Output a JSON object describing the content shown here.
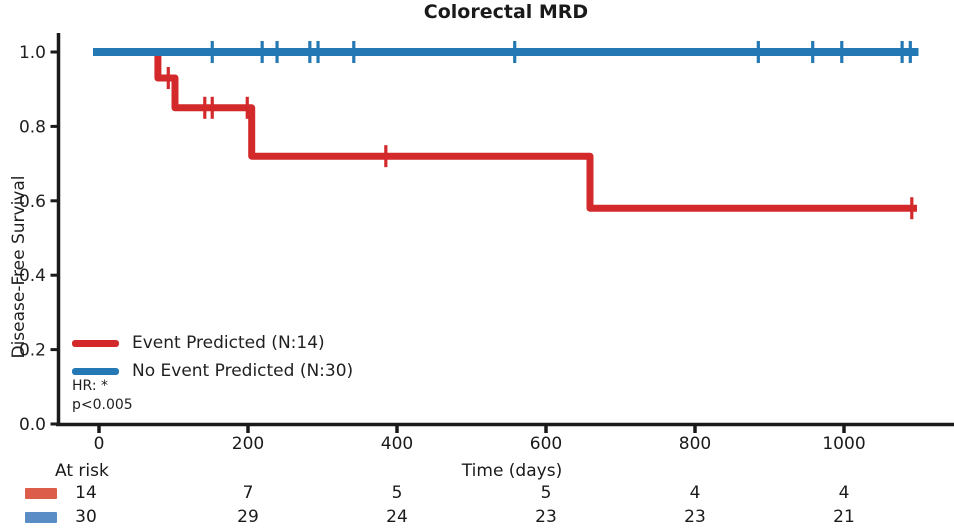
{
  "chart_data": {
    "type": "line",
    "subtype": "kaplan-meier-step",
    "title": "Colorectal MRD",
    "xlabel": "Time (days)",
    "ylabel": "Disease-Free Survival",
    "xlim": [
      0,
      1148
    ],
    "ylim": [
      0.0,
      1.0
    ],
    "x_ticks": [
      0,
      200,
      400,
      600,
      800,
      1000
    ],
    "y_ticks": [
      0.0,
      0.2,
      0.4,
      0.6,
      0.8,
      1.0
    ],
    "grid": false,
    "legend_position": "lower-left",
    "series": [
      {
        "name": "Event Predicted (N:14)",
        "n": 14,
        "color": "#d3292b",
        "steps": [
          [
            0,
            1.0
          ],
          [
            79,
            0.93
          ],
          [
            102,
            0.85
          ],
          [
            205,
            0.72
          ],
          [
            659,
            0.58
          ]
        ],
        "end_time": 1098,
        "censor_times": [
          93,
          142,
          152,
          199,
          385,
          1091
        ]
      },
      {
        "name": "No Event Predicted (N:30)",
        "n": 30,
        "color": "#2478b4",
        "steps": [
          [
            0,
            1.0
          ]
        ],
        "end_time": 1100,
        "censor_times": [
          152,
          219,
          239,
          283,
          294,
          342,
          558,
          885,
          958,
          997,
          1078,
          1089
        ]
      }
    ],
    "annotations": [
      "HR: *",
      "p<0.005"
    ]
  },
  "at_risk_table": {
    "label": "At risk",
    "times": [
      0,
      200,
      400,
      600,
      800,
      1000
    ],
    "rows": [
      {
        "series": "Event Predicted",
        "swatch_color": "#dc5e4a",
        "counts": [
          14,
          7,
          5,
          5,
          4,
          4
        ]
      },
      {
        "series": "No Event Predicted",
        "swatch_color": "#5a8dc5",
        "counts": [
          30,
          29,
          24,
          23,
          23,
          21
        ]
      }
    ]
  },
  "colors": {
    "event_line": "#d3292b",
    "no_event_line": "#2478b4",
    "event_swatch": "#dc5e4a",
    "no_event_swatch": "#5a8dc5",
    "axis": "#1a1a1a",
    "text": "#1f1f1f"
  }
}
